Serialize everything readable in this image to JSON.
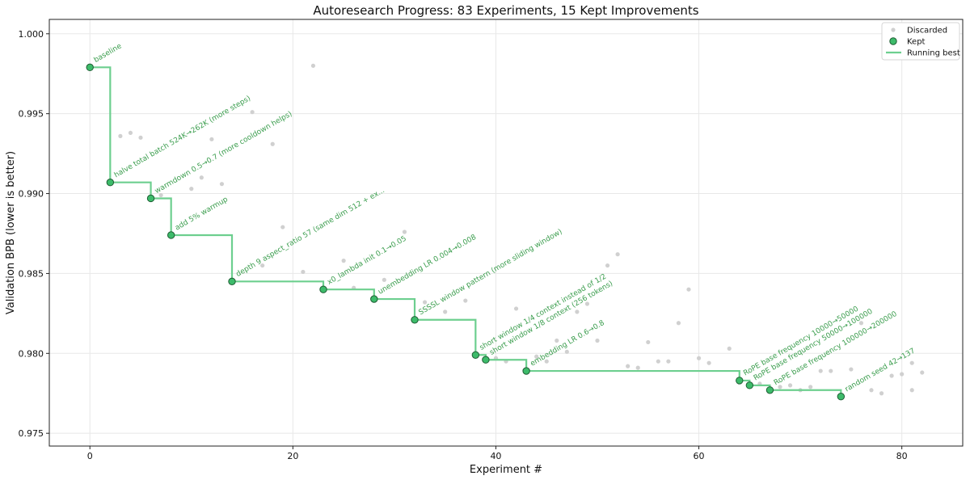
{
  "chart_data": {
    "type": "scatter",
    "title": "Autoresearch Progress: 83 Experiments, 15 Kept Improvements",
    "xlabel": "Experiment #",
    "ylabel": "Validation BPB (lower is better)",
    "xlim": [
      -4,
      86
    ],
    "ylim": [
      0.9742,
      1.0009
    ],
    "xticks": [
      0,
      20,
      40,
      60,
      80
    ],
    "yticks": [
      0.975,
      0.98,
      0.985,
      0.99,
      0.995,
      1.0
    ],
    "ytick_labels": [
      "0.975",
      "0.980",
      "0.985",
      "0.990",
      "0.995",
      "1.000"
    ],
    "grid": true,
    "legend_position": "top-right",
    "legend": [
      "Discarded",
      "Kept",
      "Running best"
    ],
    "colors": {
      "kept_fill": "#3dbb6a",
      "kept_edge": "#1e5c33",
      "running_best": "#6dcf8f",
      "discarded": "#d0d0d0",
      "annotation": "#3a9d4d"
    },
    "series": [
      {
        "name": "Discarded",
        "points": [
          [
            3,
            0.9936
          ],
          [
            4,
            0.9938
          ],
          [
            5,
            0.9935
          ],
          [
            7,
            0.9899
          ],
          [
            10,
            0.9903
          ],
          [
            11,
            0.991
          ],
          [
            12,
            0.9934
          ],
          [
            13,
            0.9906
          ],
          [
            16,
            0.9951
          ],
          [
            17,
            0.9855
          ],
          [
            18,
            0.9931
          ],
          [
            19,
            0.9879
          ],
          [
            21,
            0.9851
          ],
          [
            22,
            0.998
          ],
          [
            25,
            0.9858
          ],
          [
            26,
            0.9841
          ],
          [
            29,
            0.9846
          ],
          [
            31,
            0.9876
          ],
          [
            33,
            0.9832
          ],
          [
            35,
            0.9826
          ],
          [
            37,
            0.9833
          ],
          [
            40,
            0.9797
          ],
          [
            41,
            0.9795
          ],
          [
            42,
            0.9828
          ],
          [
            44,
            0.9798
          ],
          [
            45,
            0.9795
          ],
          [
            46,
            0.9808
          ],
          [
            47,
            0.9801
          ],
          [
            48,
            0.9826
          ],
          [
            49,
            0.9831
          ],
          [
            50,
            0.9808
          ],
          [
            51,
            0.9855
          ],
          [
            52,
            0.9862
          ],
          [
            53,
            0.9792
          ],
          [
            54,
            0.9791
          ],
          [
            55,
            0.9807
          ],
          [
            56,
            0.9795
          ],
          [
            57,
            0.9795
          ],
          [
            58,
            0.9819
          ],
          [
            59,
            0.984
          ],
          [
            60,
            0.9797
          ],
          [
            61,
            0.9794
          ],
          [
            63,
            0.9803
          ],
          [
            66,
            0.9781
          ],
          [
            68,
            0.9779
          ],
          [
            69,
            0.978
          ],
          [
            70,
            0.9777
          ],
          [
            71,
            0.9779
          ],
          [
            72,
            0.9789
          ],
          [
            73,
            0.9789
          ],
          [
            75,
            0.979
          ],
          [
            76,
            0.9819
          ],
          [
            77,
            0.9777
          ],
          [
            78,
            0.9775
          ],
          [
            79,
            0.9786
          ],
          [
            80,
            0.9787
          ],
          [
            81,
            0.9794
          ],
          [
            81,
            0.9777
          ],
          [
            82,
            0.9788
          ]
        ]
      },
      {
        "name": "Kept",
        "points": [
          {
            "x": 0,
            "y": 0.9979,
            "label": "baseline"
          },
          {
            "x": 2,
            "y": 0.9907,
            "label": "halve total batch 524K→262K (more steps)"
          },
          {
            "x": 6,
            "y": 0.9897,
            "label": "warmdown 0.5→0.7 (more cooldown helps)"
          },
          {
            "x": 8,
            "y": 0.9874,
            "label": "add 5% warmup"
          },
          {
            "x": 14,
            "y": 0.9845,
            "label": "depth 9 aspect_ratio 57 (same dim 512 + ex..."
          },
          {
            "x": 23,
            "y": 0.984,
            "label": "x0_lambda init 0.1→0.05"
          },
          {
            "x": 28,
            "y": 0.9834,
            "label": "unembedding LR 0.004→0.008"
          },
          {
            "x": 32,
            "y": 0.9821,
            "label": "SSSSL window pattern (more sliding window)"
          },
          {
            "x": 38,
            "y": 0.9799,
            "label": "short window 1/4 context instead of 1/2"
          },
          {
            "x": 39,
            "y": 0.9796,
            "label": "short window 1/8 context (256 tokens)"
          },
          {
            "x": 43,
            "y": 0.9789,
            "label": "embedding LR 0.6→0.8"
          },
          {
            "x": 64,
            "y": 0.9783,
            "label": "RoPE base frequency 10000→50000"
          },
          {
            "x": 65,
            "y": 0.978,
            "label": "RoPE base frequency 50000→100000"
          },
          {
            "x": 67,
            "y": 0.9777,
            "label": "RoPE base frequency 100000→200000"
          },
          {
            "x": 74,
            "y": 0.9773,
            "label": "random seed 42→137"
          }
        ]
      },
      {
        "name": "Running best",
        "step": "post"
      }
    ]
  }
}
